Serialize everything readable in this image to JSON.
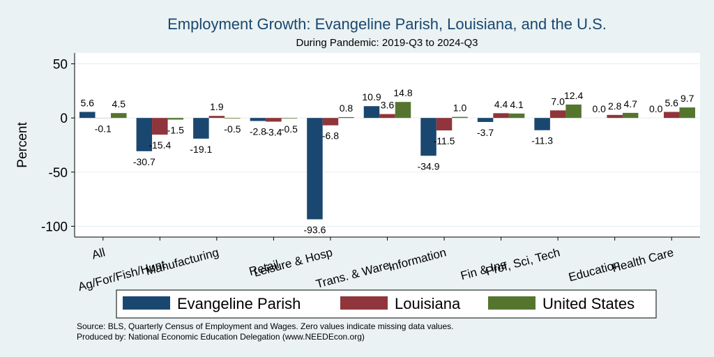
{
  "chart_data": {
    "type": "bar",
    "title": "Employment Growth: Evangeline Parish, Louisiana, and the U.S.",
    "subtitle": "During Pandemic: 2019-Q3 to 2024-Q3",
    "ylabel": "Percent",
    "xlabel": "",
    "ylim": [
      -110,
      60
    ],
    "yticks": [
      -100,
      -50,
      0,
      50
    ],
    "grid": true,
    "categories": [
      "All",
      "Ag/For/Fish/Hunt",
      "Manufacturing",
      "Retail",
      "Leisure & Hosp",
      "Trans. & Ware.",
      "Information",
      "Fin & Ins",
      "Prof, Sci, Tech",
      "Education",
      "Health Care"
    ],
    "series": [
      {
        "name": "Evangeline Parish",
        "color": "#1a476f",
        "values": [
          5.6,
          -30.7,
          -19.1,
          -2.8,
          -93.6,
          10.9,
          -34.9,
          -3.7,
          -11.3,
          0.0,
          0.0
        ],
        "labels": [
          "5.6",
          "-30.7",
          "-19.1",
          "-2.8",
          "-93.6",
          "10.9",
          "-34.9",
          "-3.7",
          "-11.3",
          "0.0",
          "0.0"
        ]
      },
      {
        "name": "Louisiana",
        "color": "#90353b",
        "values": [
          -0.1,
          -15.4,
          1.9,
          -3.4,
          -6.8,
          3.6,
          -11.5,
          4.4,
          7.0,
          2.8,
          5.6
        ],
        "labels": [
          "-0.1",
          "-15.4",
          "1.9",
          "-3.4",
          "-6.8",
          "3.6",
          "-11.5",
          "4.4",
          "7.0",
          "2.8",
          "5.6"
        ]
      },
      {
        "name": "United States",
        "color": "#55752f",
        "values": [
          4.5,
          -1.5,
          -0.5,
          -0.5,
          0.8,
          14.8,
          1.0,
          4.1,
          12.4,
          4.7,
          9.7
        ],
        "labels": [
          "4.5",
          "-1.5",
          "-0.5",
          "-0.5",
          "0.8",
          "14.8",
          "1.0",
          "4.1",
          "12.4",
          "4.7",
          "9.7"
        ]
      }
    ],
    "legend_position": "bottom",
    "notes": [
      "Source: BLS, Quarterly Census of Employment and Wages. Zero values indicate missing data values.",
      "Produced by: National Economic Education Delegation (www.NEEDEcon.org)"
    ]
  }
}
